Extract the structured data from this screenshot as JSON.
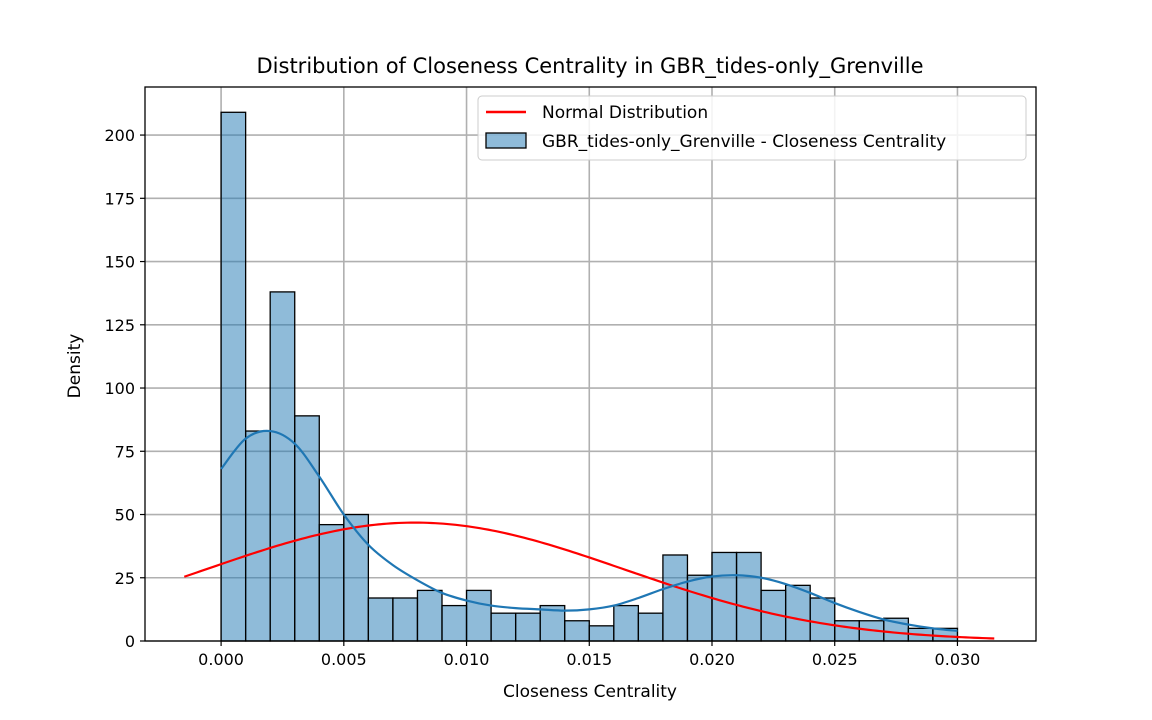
{
  "chart_data": {
    "type": "bar",
    "title": "Distribution of Closeness Centrality in GBR_tides-only_Grenville",
    "xlabel": "Closeness Centrality",
    "ylabel": "Density",
    "xlim": [
      -0.0031,
      0.0332
    ],
    "ylim": [
      0,
      219
    ],
    "grid": true,
    "legend_placement": "top-right",
    "x_ticks": [
      "0.000",
      "0.005",
      "0.010",
      "0.015",
      "0.020",
      "0.025",
      "0.030"
    ],
    "y_ticks": [
      "0",
      "25",
      "50",
      "75",
      "100",
      "125",
      "150",
      "175",
      "200"
    ],
    "histogram": {
      "name": "GBR_tides-only_Grenville - Closeness Centrality",
      "color": "#1f77b4",
      "bin_start": 0.0,
      "bin_width": 0.001,
      "values": [
        209,
        83,
        138,
        89,
        46,
        50,
        17,
        17,
        20,
        14,
        20,
        11,
        11,
        14,
        8,
        6,
        14,
        11,
        34,
        26,
        35,
        35,
        20,
        22,
        17,
        8,
        8,
        9,
        5,
        5
      ]
    },
    "kde": {
      "color": "#1f77b4",
      "x": [
        0.0,
        0.001,
        0.002,
        0.003,
        0.004,
        0.005,
        0.006,
        0.007,
        0.008,
        0.009,
        0.01,
        0.011,
        0.012,
        0.013,
        0.014,
        0.015,
        0.016,
        0.017,
        0.018,
        0.019,
        0.02,
        0.021,
        0.022,
        0.023,
        0.024,
        0.025,
        0.026,
        0.027,
        0.028,
        0.029,
        0.03
      ],
      "y": [
        68,
        80,
        83,
        78,
        65,
        50,
        38,
        30,
        24,
        19,
        16,
        14,
        13,
        12.5,
        12,
        12.5,
        14,
        17,
        20.5,
        23.5,
        25.5,
        26,
        25,
        22.5,
        19,
        15,
        11.5,
        8.5,
        6.5,
        5,
        4
      ]
    },
    "normal": {
      "name": "Normal Distribution",
      "color": "#ff0000",
      "mean": 0.0079,
      "std": 0.0085,
      "x_range": [
        -0.0015,
        0.0315
      ],
      "y_at_mean": 46.8
    }
  }
}
